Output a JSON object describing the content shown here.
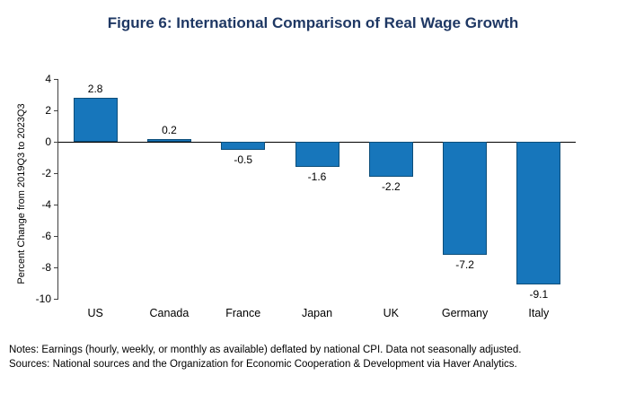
{
  "chart_data": {
    "type": "bar",
    "title": "Figure 6: International Comparison of Real Wage Growth",
    "categories": [
      "US",
      "Canada",
      "France",
      "Japan",
      "UK",
      "Germany",
      "Italy"
    ],
    "values": [
      2.8,
      0.2,
      -0.5,
      -1.6,
      -2.2,
      -7.2,
      -9.1
    ],
    "xlabel": "",
    "ylabel": "Percent Change from 2019Q3 to 2023Q3",
    "ylim": [
      -10,
      4
    ],
    "ytick_step": 2,
    "grid": false,
    "legend": false,
    "bar_color": "#1776bb",
    "bar_border_color": "#0d4e7a",
    "title_color": "#1f3864"
  },
  "notes": {
    "line1": "Notes: Earnings (hourly, weekly, or monthly  as available) deflated by national CPI. Data not seasonally adjusted.",
    "line2": "Sources: National sources and the Organization for Economic Cooperation & Development via Haver Analytics."
  }
}
